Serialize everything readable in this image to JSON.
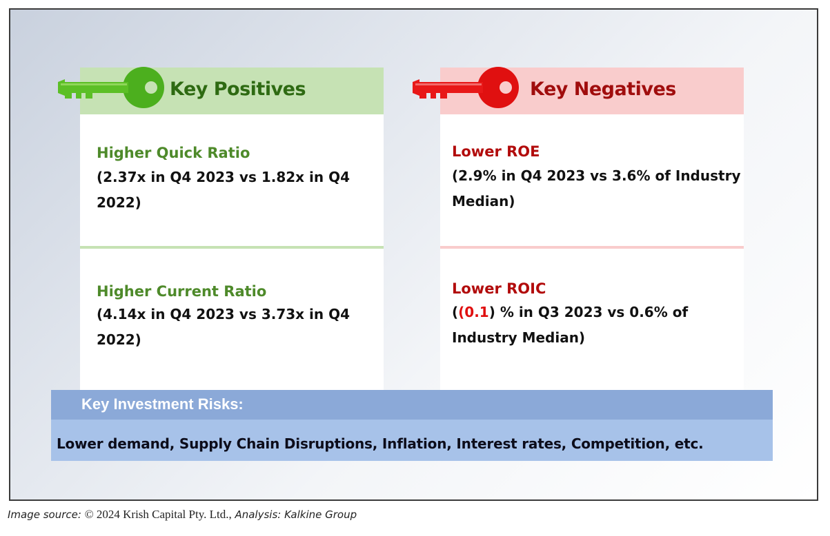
{
  "positives": {
    "title": "Key Positives",
    "color": "#2e6a12",
    "items": [
      {
        "title": "Higher Quick Ratio",
        "line1": "(2.37x in Q4 2023 vs 1.82x in Q4",
        "line2": "2022)"
      },
      {
        "title": "Higher Current Ratio",
        "line1": "(4.14x in Q4 2023 vs 3.73x in Q4",
        "line2": "2022)"
      }
    ]
  },
  "negatives": {
    "title": "Key Negatives",
    "color": "#a00d0d",
    "items": [
      {
        "title": "Lower ROE",
        "line1": "(2.9% in Q4 2023 vs 3.6% of Industry",
        "line2": "Median)"
      },
      {
        "title": "Lower ROIC",
        "line1_pre": "(",
        "line1_red": "(0.1",
        "line1_post": ") % in Q3 2023 vs 0.6% of",
        "line2": "Industry Median)"
      }
    ]
  },
  "risks": {
    "title": "Key Investment Risks:",
    "text": "Lower demand, Supply Chain Disruptions, Inflation, Interest rates, Competition, etc."
  },
  "source": {
    "label": "Image source: ",
    "copyright": "© 2024 Krish Capital Pty. Ltd.,",
    "analysis": " Analysis: Kalkine Group"
  },
  "icons": [
    "green-key-icon",
    "red-key-icon"
  ]
}
